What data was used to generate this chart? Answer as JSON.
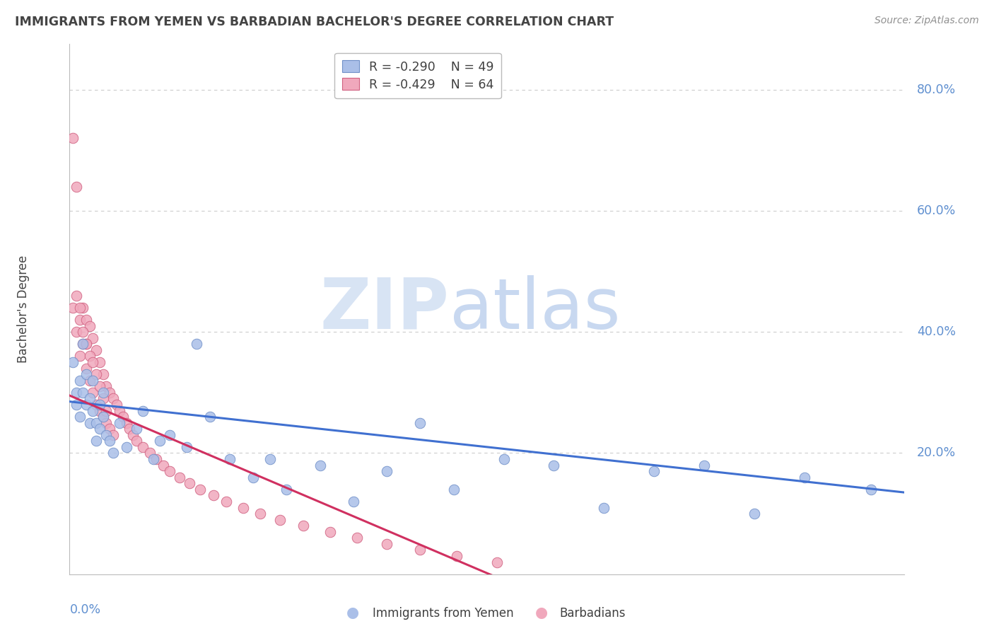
{
  "title": "IMMIGRANTS FROM YEMEN VS BARBADIAN BACHELOR'S DEGREE CORRELATION CHART",
  "source": "Source: ZipAtlas.com",
  "ylabel": "Bachelor's Degree",
  "xmin": 0.0,
  "xmax": 0.25,
  "ymin": 0.0,
  "ymax": 0.875,
  "ytick_values": [
    0.2,
    0.4,
    0.6,
    0.8
  ],
  "ytick_labels": [
    "20.0%",
    "40.0%",
    "60.0%",
    "80.0%"
  ],
  "xtick_left": "0.0%",
  "legend1_R": "-0.290",
  "legend1_N": "49",
  "legend2_R": "-0.429",
  "legend2_N": "64",
  "legend1_label": "Immigrants from Yemen",
  "legend2_label": "Barbadians",
  "blue_fill": "#AABFE8",
  "pink_fill": "#F0A8BC",
  "blue_edge": "#7090C8",
  "pink_edge": "#D06080",
  "blue_line": "#4070D0",
  "pink_line": "#D03060",
  "watermark_zip": "#D8E4F4",
  "watermark_atlas": "#C8D8F0",
  "bg": "#FFFFFF",
  "grid_color": "#CCCCCC",
  "title_color": "#444444",
  "axis_tick_color": "#6090D0",
  "spine_color": "#BBBBBB",
  "yemen_x": [
    0.001,
    0.002,
    0.002,
    0.003,
    0.003,
    0.004,
    0.004,
    0.005,
    0.005,
    0.006,
    0.006,
    0.007,
    0.007,
    0.008,
    0.008,
    0.009,
    0.009,
    0.01,
    0.01,
    0.011,
    0.012,
    0.013,
    0.015,
    0.017,
    0.02,
    0.022,
    0.025,
    0.027,
    0.03,
    0.035,
    0.038,
    0.042,
    0.048,
    0.055,
    0.06,
    0.065,
    0.075,
    0.085,
    0.095,
    0.105,
    0.115,
    0.13,
    0.145,
    0.16,
    0.175,
    0.19,
    0.205,
    0.22,
    0.24
  ],
  "yemen_y": [
    0.35,
    0.3,
    0.28,
    0.32,
    0.26,
    0.38,
    0.3,
    0.28,
    0.33,
    0.25,
    0.29,
    0.32,
    0.27,
    0.25,
    0.22,
    0.28,
    0.24,
    0.3,
    0.26,
    0.23,
    0.22,
    0.2,
    0.25,
    0.21,
    0.24,
    0.27,
    0.19,
    0.22,
    0.23,
    0.21,
    0.38,
    0.26,
    0.19,
    0.16,
    0.19,
    0.14,
    0.18,
    0.12,
    0.17,
    0.25,
    0.14,
    0.19,
    0.18,
    0.11,
    0.17,
    0.18,
    0.1,
    0.16,
    0.14
  ],
  "barbadian_x": [
    0.001,
    0.001,
    0.002,
    0.002,
    0.003,
    0.003,
    0.004,
    0.004,
    0.005,
    0.005,
    0.005,
    0.006,
    0.006,
    0.007,
    0.007,
    0.008,
    0.008,
    0.009,
    0.009,
    0.01,
    0.01,
    0.011,
    0.011,
    0.012,
    0.012,
    0.013,
    0.013,
    0.014,
    0.015,
    0.016,
    0.017,
    0.018,
    0.019,
    0.02,
    0.022,
    0.024,
    0.026,
    0.028,
    0.03,
    0.033,
    0.036,
    0.039,
    0.043,
    0.047,
    0.052,
    0.057,
    0.063,
    0.07,
    0.078,
    0.086,
    0.095,
    0.105,
    0.116,
    0.128,
    0.002,
    0.003,
    0.004,
    0.005,
    0.006,
    0.007,
    0.008,
    0.009,
    0.01,
    0.011
  ],
  "barbadian_y": [
    0.72,
    0.44,
    0.64,
    0.4,
    0.42,
    0.36,
    0.44,
    0.38,
    0.42,
    0.34,
    0.38,
    0.41,
    0.32,
    0.39,
    0.3,
    0.37,
    0.28,
    0.35,
    0.27,
    0.33,
    0.26,
    0.31,
    0.25,
    0.3,
    0.24,
    0.29,
    0.23,
    0.28,
    0.27,
    0.26,
    0.25,
    0.24,
    0.23,
    0.22,
    0.21,
    0.2,
    0.19,
    0.18,
    0.17,
    0.16,
    0.15,
    0.14,
    0.13,
    0.12,
    0.11,
    0.1,
    0.09,
    0.08,
    0.07,
    0.06,
    0.05,
    0.04,
    0.03,
    0.02,
    0.46,
    0.44,
    0.4,
    0.38,
    0.36,
    0.35,
    0.33,
    0.31,
    0.29,
    0.27
  ],
  "blue_line_x0": 0.0,
  "blue_line_y0": 0.285,
  "blue_line_x1": 0.25,
  "blue_line_y1": 0.135,
  "pink_line_x0": 0.0,
  "pink_line_y0": 0.295,
  "pink_line_x1": 0.13,
  "pink_line_y1": -0.01
}
